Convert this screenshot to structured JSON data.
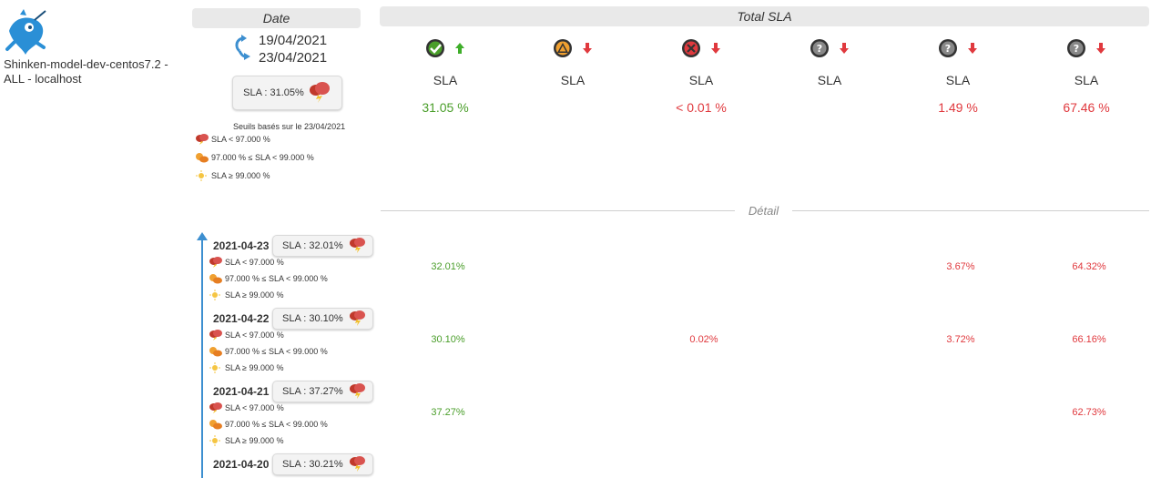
{
  "host": {
    "name": "Shinken-model-dev-centos7.2 - ALL - localhost"
  },
  "headers": {
    "date": "Date",
    "total_sla": "Total SLA",
    "detail": "Détail"
  },
  "range": {
    "from": "19/04/2021",
    "to": "23/04/2021"
  },
  "summary": {
    "sla_text": "SLA : 31.05%",
    "threshold_note": "Seuils basés sur le 23/04/2021"
  },
  "legend": {
    "bad": "SLA < 97.000 %",
    "warn": "97.000 % ≤ SLA < 99.000 %",
    "good": "SLA ≥ 99.000 %"
  },
  "columns": [
    {
      "status_icon": "ok-check-icon",
      "trend_icon": "arrow-up-icon",
      "status_color": "#4a9e2a",
      "label": "SLA",
      "value": "31.05 %",
      "value_color": "green"
    },
    {
      "status_icon": "warning-icon",
      "trend_icon": "arrow-down-icon",
      "status_color": "#f0a030",
      "label": "SLA",
      "value": "",
      "value_color": "red"
    },
    {
      "status_icon": "critical-x-icon",
      "trend_icon": "arrow-down-icon",
      "status_color": "#e0393e",
      "label": "SLA",
      "value": "< 0.01 %",
      "value_color": "red"
    },
    {
      "status_icon": "unknown-icon",
      "trend_icon": "arrow-down-icon",
      "status_color": "#888888",
      "label": "SLA",
      "value": "",
      "value_color": "red"
    },
    {
      "status_icon": "unknown-icon",
      "trend_icon": "arrow-down-icon",
      "status_color": "#888888",
      "label": "SLA",
      "value": "1.49 %",
      "value_color": "red"
    },
    {
      "status_icon": "unknown-icon",
      "trend_icon": "arrow-down-icon",
      "status_color": "#888888",
      "label": "SLA",
      "value": "67.46 %",
      "value_color": "red"
    }
  ],
  "days": [
    {
      "date": "2021-04-23",
      "sla_text": "SLA : 32.01%",
      "values": [
        "32.01%",
        "",
        "",
        "",
        "3.67%",
        "64.32%"
      ]
    },
    {
      "date": "2021-04-22",
      "sla_text": "SLA : 30.10%",
      "values": [
        "30.10%",
        "",
        "0.02%",
        "",
        "3.72%",
        "66.16%"
      ]
    },
    {
      "date": "2021-04-21",
      "sla_text": "SLA : 37.27%",
      "values": [
        "37.27%",
        "",
        "",
        "",
        "",
        "62.73%"
      ]
    },
    {
      "date": "2021-04-20",
      "sla_text": "SLA : 30.21%",
      "values": [
        "",
        "",
        "",
        "",
        "",
        ""
      ]
    }
  ]
}
